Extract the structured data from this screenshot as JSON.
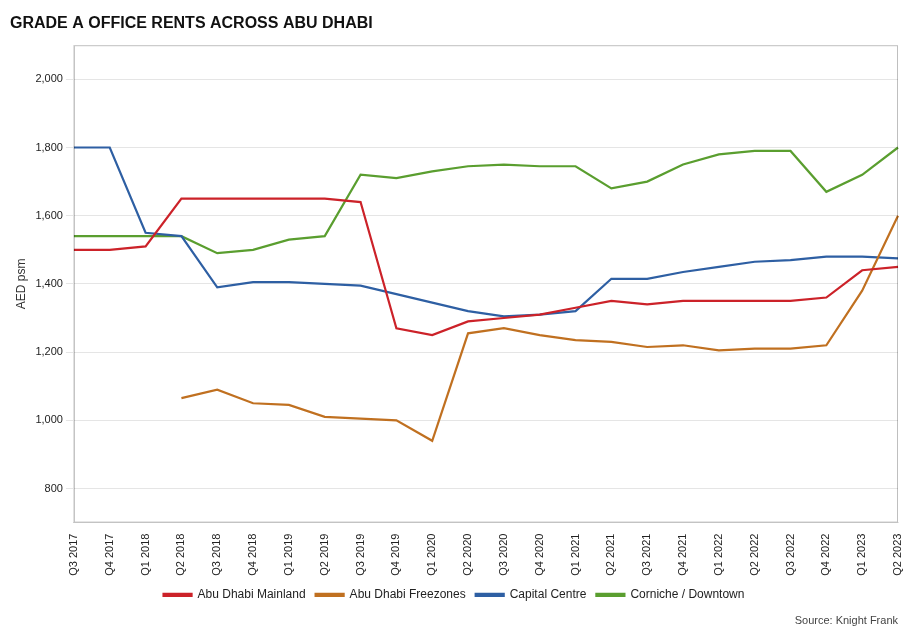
{
  "chart_data": {
    "type": "line",
    "title": "GRADE A OFFICE RENTS ACROSS ABU DHABI",
    "ylabel": "AED psm",
    "source": "Source: Knight Frank",
    "categories": [
      "Q3 2017",
      "Q4 2017",
      "Q1 2018",
      "Q2 2018",
      "Q3 2018",
      "Q4 2018",
      "Q1 2019",
      "Q2 2019",
      "Q3 2019",
      "Q4 2019",
      "Q1 2020",
      "Q2 2020",
      "Q3 2020",
      "Q4 2020",
      "Q1 2021",
      "Q2 2021",
      "Q3 2021",
      "Q4 2021",
      "Q1 2022",
      "Q2 2022",
      "Q3 2022",
      "Q4 2022",
      "Q1 2023",
      "Q2 2023"
    ],
    "series": [
      {
        "name": "Abu Dhabi Mainland",
        "color": "#cc2229",
        "values": [
          1500,
          1500,
          1510,
          1650,
          1650,
          1650,
          1650,
          1650,
          1640,
          1270,
          1250,
          1290,
          1300,
          1310,
          1330,
          1350,
          1340,
          1350,
          1350,
          1350,
          1350,
          1360,
          1440,
          1450
        ]
      },
      {
        "name": "Abu Dhabi Freezones",
        "color": "#c07020",
        "values": [
          null,
          null,
          null,
          1065,
          1090,
          1050,
          1045,
          1010,
          1005,
          1000,
          940,
          1255,
          1270,
          1250,
          1235,
          1230,
          1215,
          1220,
          1205,
          1210,
          1210,
          1220,
          1380,
          1600
        ]
      },
      {
        "name": "Capital Centre",
        "color": "#2e5fa3",
        "values": [
          1800,
          1800,
          1550,
          1540,
          1390,
          1405,
          1405,
          1400,
          1395,
          1370,
          1345,
          1320,
          1305,
          1310,
          1320,
          1415,
          1415,
          1435,
          1450,
          1465,
          1470,
          1480,
          1480,
          1475
        ]
      },
      {
        "name": "Corniche / Downtown",
        "color": "#5a9e2f",
        "values": [
          1540,
          1540,
          1540,
          1540,
          1490,
          1500,
          1530,
          1540,
          1720,
          1710,
          1730,
          1745,
          1750,
          1745,
          1745,
          1680,
          1700,
          1750,
          1780,
          1790,
          1790,
          1670,
          1720,
          1800
        ]
      }
    ],
    "ylim": [
      700,
      2100
    ],
    "yticks": [
      800,
      {
        "value": 1000,
        "label": "1,000"
      },
      {
        "value": 1200,
        "label": "1,200"
      },
      {
        "value": 1400,
        "label": "1,400"
      },
      {
        "value": 1600,
        "label": "1,600"
      },
      {
        "value": 1800,
        "label": "1,800"
      },
      {
        "value": 2000,
        "label": "2,000"
      }
    ],
    "grid": true,
    "legend": "bottom"
  }
}
